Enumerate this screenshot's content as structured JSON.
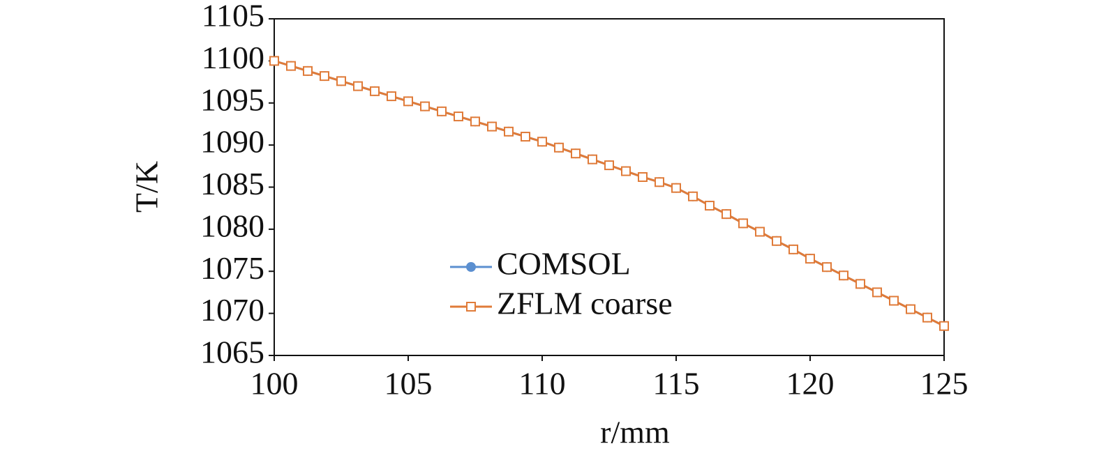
{
  "chart_data": {
    "type": "line",
    "x_label": "r/mm",
    "y_label": "T/K",
    "x": [
      100,
      100.625,
      101.25,
      101.875,
      102.5,
      103.125,
      103.75,
      104.375,
      105,
      105.625,
      106.25,
      106.875,
      107.5,
      108.125,
      108.75,
      109.375,
      110,
      110.625,
      111.25,
      111.875,
      112.5,
      113.125,
      113.75,
      114.375,
      115,
      115.625,
      116.25,
      116.875,
      117.5,
      118.125,
      118.75,
      119.375,
      120,
      120.625,
      121.25,
      121.875,
      122.5,
      123.125,
      123.75,
      124.375,
      125
    ],
    "series": [
      {
        "name": "COMSOL",
        "color": "#5b8fd0",
        "marker": "circle",
        "values": [
          1100.0,
          1099.4,
          1098.8,
          1098.2,
          1097.6,
          1097.0,
          1096.4,
          1095.8,
          1095.2,
          1094.6,
          1094.0,
          1093.4,
          1092.8,
          1092.2,
          1091.6,
          1091.0,
          1090.4,
          1089.7,
          1089.0,
          1088.3,
          1087.6,
          1086.9,
          1086.2,
          1085.6,
          1084.9,
          1083.9,
          1082.8,
          1081.8,
          1080.7,
          1079.7,
          1078.6,
          1077.6,
          1076.5,
          1075.5,
          1074.5,
          1073.5,
          1072.5,
          1071.5,
          1070.5,
          1069.5,
          1068.5
        ]
      },
      {
        "name": "ZFLM coarse",
        "color": "#e07b39",
        "marker": "square",
        "values": [
          1100.0,
          1099.4,
          1098.8,
          1098.2,
          1097.6,
          1097.0,
          1096.4,
          1095.8,
          1095.2,
          1094.6,
          1094.0,
          1093.4,
          1092.8,
          1092.2,
          1091.6,
          1091.0,
          1090.4,
          1089.7,
          1089.0,
          1088.3,
          1087.6,
          1086.9,
          1086.2,
          1085.6,
          1084.9,
          1083.9,
          1082.8,
          1081.8,
          1080.7,
          1079.7,
          1078.6,
          1077.6,
          1076.5,
          1075.5,
          1074.5,
          1073.5,
          1072.5,
          1071.5,
          1070.5,
          1069.5,
          1068.5
        ]
      }
    ],
    "xlim": [
      100,
      125
    ],
    "xticks": [
      100,
      105,
      110,
      115,
      120,
      125
    ],
    "ylim": [
      1065,
      1105
    ],
    "yticks": [
      1065,
      1070,
      1075,
      1080,
      1085,
      1090,
      1095,
      1100,
      1105
    ],
    "grid": false,
    "legend": "lower center"
  }
}
